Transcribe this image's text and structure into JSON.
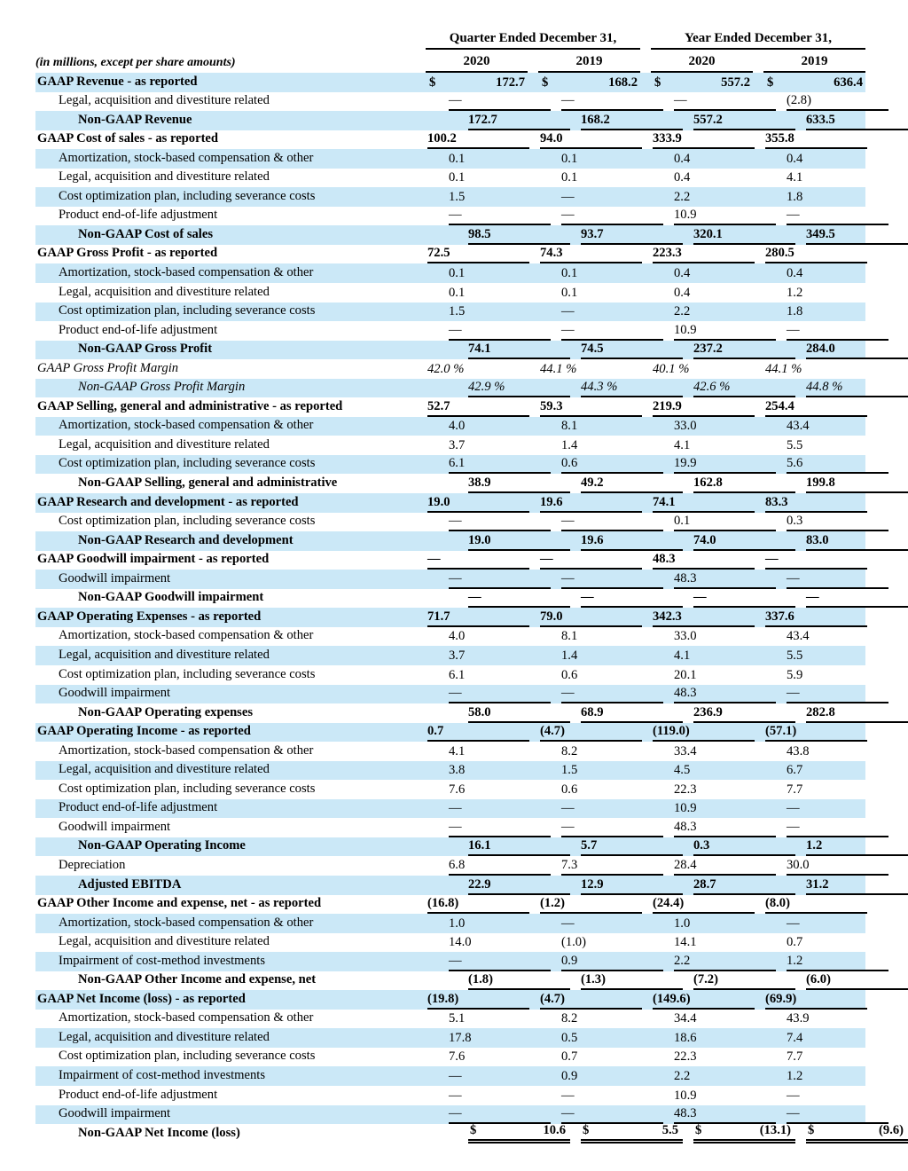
{
  "page": {
    "caption": "(in millions, except per share amounts)",
    "stripe_color": "#CBE8F7",
    "text_color": "#000000"
  },
  "currency_symbol": "$",
  "header": {
    "quarter_group": "Quarter Ended December 31,",
    "year_group": "Year Ended December 31,",
    "columns": [
      "2020",
      "2019",
      "2020",
      "2019"
    ]
  },
  "rows": [
    {
      "label": "GAAP Revenue - as reported",
      "type": "gaap",
      "indent": 0,
      "dollar": true,
      "underline": "none",
      "values": [
        "172.7",
        "168.2",
        "557.2",
        "636.4"
      ]
    },
    {
      "label": "Legal, acquisition and divestiture related",
      "type": "adjustment",
      "indent": 1,
      "dollar": false,
      "underline": "single",
      "values": [
        "—",
        "—",
        "—",
        "(2.8)"
      ]
    },
    {
      "label": "Non-GAAP Revenue",
      "type": "nongaap",
      "indent": 2,
      "dollar": false,
      "underline": "single",
      "values": [
        "172.7",
        "168.2",
        "557.2",
        "633.5"
      ]
    },
    {
      "label": "GAAP Cost of sales - as reported",
      "type": "gaap",
      "indent": 0,
      "dollar": false,
      "underline": "single",
      "values": [
        "100.2",
        "94.0",
        "333.9",
        "355.8"
      ]
    },
    {
      "label": "Amortization, stock-based compensation & other",
      "type": "adjustment",
      "indent": 1,
      "dollar": false,
      "underline": "none",
      "values": [
        "0.1",
        "0.1",
        "0.4",
        "0.4"
      ]
    },
    {
      "label": "Legal, acquisition and divestiture related",
      "type": "adjustment",
      "indent": 1,
      "dollar": false,
      "underline": "none",
      "values": [
        "0.1",
        "0.1",
        "0.4",
        "4.1"
      ]
    },
    {
      "label": "Cost optimization plan, including severance costs",
      "type": "adjustment",
      "indent": 1,
      "dollar": false,
      "underline": "none",
      "values": [
        "1.5",
        "—",
        "2.2",
        "1.8"
      ]
    },
    {
      "label": "Product end-of-life adjustment",
      "type": "adjustment",
      "indent": 1,
      "dollar": false,
      "underline": "single",
      "values": [
        "—",
        "—",
        "10.9",
        "—"
      ]
    },
    {
      "label": "Non-GAAP Cost of sales",
      "type": "nongaap",
      "indent": 2,
      "dollar": false,
      "underline": "single",
      "values": [
        "98.5",
        "93.7",
        "320.1",
        "349.5"
      ]
    },
    {
      "label": "GAAP Gross Profit - as reported",
      "type": "gaap",
      "indent": 0,
      "dollar": false,
      "underline": "single",
      "values": [
        "72.5",
        "74.3",
        "223.3",
        "280.5"
      ]
    },
    {
      "label": "Amortization, stock-based compensation & other",
      "type": "adjustment",
      "indent": 1,
      "dollar": false,
      "underline": "none",
      "values": [
        "0.1",
        "0.1",
        "0.4",
        "0.4"
      ]
    },
    {
      "label": "Legal, acquisition and divestiture related",
      "type": "adjustment",
      "indent": 1,
      "dollar": false,
      "underline": "none",
      "values": [
        "0.1",
        "0.1",
        "0.4",
        "1.2"
      ]
    },
    {
      "label": "Cost optimization plan, including severance costs",
      "type": "adjustment",
      "indent": 1,
      "dollar": false,
      "underline": "none",
      "values": [
        "1.5",
        "—",
        "2.2",
        "1.8"
      ]
    },
    {
      "label": "Product end-of-life adjustment",
      "type": "adjustment",
      "indent": 1,
      "dollar": false,
      "underline": "single",
      "values": [
        "—",
        "—",
        "10.9",
        "—"
      ]
    },
    {
      "label": "Non-GAAP Gross Profit",
      "type": "nongaap",
      "indent": 2,
      "dollar": false,
      "underline": "single",
      "values": [
        "74.1",
        "74.5",
        "237.2",
        "284.0"
      ]
    },
    {
      "label": "GAAP Gross Profit Margin",
      "type": "margin_gaap",
      "indent": 0,
      "dollar": false,
      "underline": "none",
      "values": [
        "42.0 %",
        "44.1 %",
        "40.1 %",
        "44.1 %"
      ]
    },
    {
      "label": "Non-GAAP Gross Profit Margin",
      "type": "margin_nongaap",
      "indent": 2,
      "dollar": false,
      "underline": "single",
      "values": [
        "42.9 %",
        "44.3 %",
        "42.6 %",
        "44.8 %"
      ]
    },
    {
      "label": "GAAP Selling, general and administrative - as reported",
      "type": "gaap",
      "indent": 0,
      "dollar": false,
      "underline": "single",
      "values": [
        "52.7",
        "59.3",
        "219.9",
        "254.4"
      ]
    },
    {
      "label": "Amortization, stock-based compensation & other",
      "type": "adjustment",
      "indent": 1,
      "dollar": false,
      "underline": "none",
      "values": [
        "4.0",
        "8.1",
        "33.0",
        "43.4"
      ]
    },
    {
      "label": "Legal, acquisition and divestiture related",
      "type": "adjustment",
      "indent": 1,
      "dollar": false,
      "underline": "none",
      "values": [
        "3.7",
        "1.4",
        "4.1",
        "5.5"
      ]
    },
    {
      "label": "Cost optimization plan, including severance costs",
      "type": "adjustment",
      "indent": 1,
      "dollar": false,
      "underline": "single",
      "values": [
        "6.1",
        "0.6",
        "19.9",
        "5.6"
      ]
    },
    {
      "label": "Non-GAAP Selling, general and administrative",
      "type": "nongaap",
      "indent": 2,
      "dollar": false,
      "underline": "single",
      "values": [
        "38.9",
        "49.2",
        "162.8",
        "199.8"
      ]
    },
    {
      "label": "GAAP Research and development - as reported",
      "type": "gaap",
      "indent": 0,
      "dollar": false,
      "underline": "single",
      "values": [
        "19.0",
        "19.6",
        "74.1",
        "83.3"
      ]
    },
    {
      "label": "Cost optimization plan, including severance costs",
      "type": "adjustment",
      "indent": 1,
      "dollar": false,
      "underline": "single",
      "values": [
        "—",
        "—",
        "0.1",
        "0.3"
      ]
    },
    {
      "label": "Non-GAAP Research and development",
      "type": "nongaap",
      "indent": 2,
      "dollar": false,
      "underline": "single",
      "values": [
        "19.0",
        "19.6",
        "74.0",
        "83.0"
      ]
    },
    {
      "label": "GAAP Goodwill impairment - as reported",
      "type": "gaap",
      "indent": 0,
      "dollar": false,
      "underline": "single",
      "values": [
        "—",
        "—",
        "48.3",
        "—"
      ]
    },
    {
      "label": "Goodwill impairment",
      "type": "adjustment",
      "indent": 1,
      "dollar": false,
      "underline": "single",
      "values": [
        "—",
        "—",
        "48.3",
        "—"
      ]
    },
    {
      "label": "Non-GAAP Goodwill impairment",
      "type": "nongaap",
      "indent": 2,
      "dollar": false,
      "underline": "single",
      "values": [
        "—",
        "—",
        "—",
        "—"
      ]
    },
    {
      "label": "GAAP Operating Expenses - as reported",
      "type": "gaap",
      "indent": 0,
      "dollar": false,
      "underline": "single",
      "values": [
        "71.7",
        "79.0",
        "342.3",
        "337.6"
      ]
    },
    {
      "label": "Amortization, stock-based compensation & other",
      "type": "adjustment",
      "indent": 1,
      "dollar": false,
      "underline": "none",
      "values": [
        "4.0",
        "8.1",
        "33.0",
        "43.4"
      ]
    },
    {
      "label": "Legal, acquisition and divestiture related",
      "type": "adjustment",
      "indent": 1,
      "dollar": false,
      "underline": "none",
      "values": [
        "3.7",
        "1.4",
        "4.1",
        "5.5"
      ]
    },
    {
      "label": "Cost optimization plan, including severance costs",
      "type": "adjustment",
      "indent": 1,
      "dollar": false,
      "underline": "none",
      "values": [
        "6.1",
        "0.6",
        "20.1",
        "5.9"
      ]
    },
    {
      "label": "Goodwill impairment",
      "type": "adjustment",
      "indent": 1,
      "dollar": false,
      "underline": "single",
      "values": [
        "—",
        "—",
        "48.3",
        "—"
      ]
    },
    {
      "label": "Non-GAAP Operating expenses",
      "type": "nongaap",
      "indent": 2,
      "dollar": false,
      "underline": "single",
      "values": [
        "58.0",
        "68.9",
        "236.9",
        "282.8"
      ]
    },
    {
      "label": "GAAP Operating Income - as reported",
      "type": "gaap",
      "indent": 0,
      "dollar": false,
      "underline": "single",
      "values": [
        "0.7",
        "(4.7)",
        "(119.0)",
        "(57.1)"
      ]
    },
    {
      "label": "Amortization, stock-based compensation & other",
      "type": "adjustment",
      "indent": 1,
      "dollar": false,
      "underline": "none",
      "values": [
        "4.1",
        "8.2",
        "33.4",
        "43.8"
      ]
    },
    {
      "label": "Legal, acquisition and divestiture related",
      "type": "adjustment",
      "indent": 1,
      "dollar": false,
      "underline": "none",
      "values": [
        "3.8",
        "1.5",
        "4.5",
        "6.7"
      ]
    },
    {
      "label": "Cost optimization plan, including severance costs",
      "type": "adjustment",
      "indent": 1,
      "dollar": false,
      "underline": "none",
      "values": [
        "7.6",
        "0.6",
        "22.3",
        "7.7"
      ]
    },
    {
      "label": "Product end-of-life adjustment",
      "type": "adjustment",
      "indent": 1,
      "dollar": false,
      "underline": "none",
      "values": [
        "—",
        "—",
        "10.9",
        "—"
      ]
    },
    {
      "label": "Goodwill impairment",
      "type": "adjustment",
      "indent": 1,
      "dollar": false,
      "underline": "single",
      "values": [
        "—",
        "—",
        "48.3",
        "—"
      ]
    },
    {
      "label": "Non-GAAP Operating Income",
      "type": "nongaap",
      "indent": 2,
      "dollar": false,
      "underline": "single",
      "values": [
        "16.1",
        "5.7",
        "0.3",
        "1.2"
      ]
    },
    {
      "label": "Depreciation",
      "type": "adjustment",
      "indent": 1,
      "dollar": false,
      "underline": "single",
      "values": [
        "6.8",
        "7.3",
        "28.4",
        "30.0"
      ]
    },
    {
      "label": "Adjusted EBITDA",
      "type": "nongaap",
      "indent": 2,
      "dollar": false,
      "underline": "single",
      "values": [
        "22.9",
        "12.9",
        "28.7",
        "31.2"
      ]
    },
    {
      "label": "GAAP Other Income and expense, net - as reported",
      "type": "gaap",
      "indent": 0,
      "dollar": false,
      "underline": "single",
      "values": [
        "(16.8)",
        "(1.2)",
        "(24.4)",
        "(8.0)"
      ]
    },
    {
      "label": "Amortization, stock-based compensation & other",
      "type": "adjustment",
      "indent": 1,
      "dollar": false,
      "underline": "none",
      "values": [
        "1.0",
        "—",
        "1.0",
        "—"
      ]
    },
    {
      "label": "Legal, acquisition and divestiture related",
      "type": "adjustment",
      "indent": 1,
      "dollar": false,
      "underline": "none",
      "values": [
        "14.0",
        "(1.0)",
        "14.1",
        "0.7"
      ]
    },
    {
      "label": "Impairment of cost-method investments",
      "type": "adjustment",
      "indent": 1,
      "dollar": false,
      "underline": "single",
      "values": [
        "—",
        "0.9",
        "2.2",
        "1.2"
      ]
    },
    {
      "label": "Non-GAAP Other Income and expense, net",
      "type": "nongaap",
      "indent": 2,
      "dollar": false,
      "underline": "single",
      "values": [
        "(1.8)",
        "(1.3)",
        "(7.2)",
        "(6.0)"
      ]
    },
    {
      "label": "GAAP Net Income (loss) - as reported",
      "type": "gaap",
      "indent": 0,
      "dollar": false,
      "underline": "single",
      "values": [
        "(19.8)",
        "(4.7)",
        "(149.6)",
        "(69.9)"
      ]
    },
    {
      "label": "Amortization, stock-based compensation & other",
      "type": "adjustment",
      "indent": 1,
      "dollar": false,
      "underline": "none",
      "values": [
        "5.1",
        "8.2",
        "34.4",
        "43.9"
      ]
    },
    {
      "label": "Legal, acquisition and divestiture related",
      "type": "adjustment",
      "indent": 1,
      "dollar": false,
      "underline": "none",
      "values": [
        "17.8",
        "0.5",
        "18.6",
        "7.4"
      ]
    },
    {
      "label": "Cost optimization plan, including severance costs",
      "type": "adjustment",
      "indent": 1,
      "dollar": false,
      "underline": "none",
      "values": [
        "7.6",
        "0.7",
        "22.3",
        "7.7"
      ]
    },
    {
      "label": "Impairment of cost-method investments",
      "type": "adjustment",
      "indent": 1,
      "dollar": false,
      "underline": "none",
      "values": [
        "—",
        "0.9",
        "2.2",
        "1.2"
      ]
    },
    {
      "label": "Product end-of-life adjustment",
      "type": "adjustment",
      "indent": 1,
      "dollar": false,
      "underline": "none",
      "values": [
        "—",
        "—",
        "10.9",
        "—"
      ]
    },
    {
      "label": "Goodwill impairment",
      "type": "adjustment",
      "indent": 1,
      "dollar": false,
      "underline": "single",
      "values": [
        "—",
        "—",
        "48.3",
        "—"
      ]
    },
    {
      "label": "Non-GAAP Net Income (loss)",
      "type": "nongaap",
      "indent": 2,
      "dollar": true,
      "underline": "double",
      "values": [
        "10.6",
        "5.5",
        "(13.1)",
        "(9.6)"
      ]
    }
  ]
}
